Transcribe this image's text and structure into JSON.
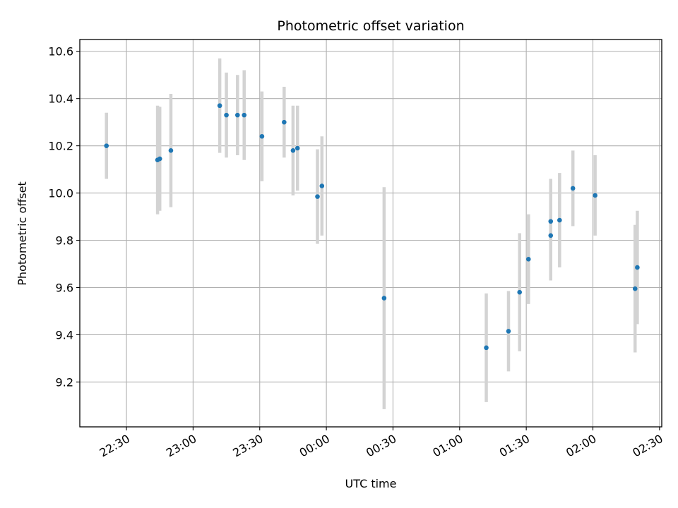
{
  "chart_data": {
    "type": "scatter",
    "title": "Photometric offset variation",
    "xlabel": "UTC time",
    "ylabel": "Photometric offset",
    "x_axis": "time",
    "x_ticks": [
      {
        "time": "22:30",
        "label": "22:30"
      },
      {
        "time": "23:00",
        "label": "23:00"
      },
      {
        "time": "23:30",
        "label": "23:30"
      },
      {
        "time": "00:00",
        "label": "00:00"
      },
      {
        "time": "00:30",
        "label": "00:30"
      },
      {
        "time": "01:00",
        "label": "01:00"
      },
      {
        "time": "01:30",
        "label": "01:30"
      },
      {
        "time": "02:00",
        "label": "02:00"
      },
      {
        "time": "02:30",
        "label": "02:30"
      }
    ],
    "xlim": [
      "22:09",
      "02:31"
    ],
    "y_ticks": [
      9.2,
      9.4,
      9.6,
      9.8,
      10.0,
      10.2,
      10.4,
      10.6
    ],
    "ylim": [
      9.01,
      10.65
    ],
    "grid": true,
    "point_color": "#1f77b4",
    "errorbar_color": "#d3d3d3",
    "points": [
      {
        "time": "22:21",
        "y": 10.2,
        "yerr": 0.14
      },
      {
        "time": "22:44",
        "y": 10.14,
        "yerr": 0.23
      },
      {
        "time": "22:45",
        "y": 10.145,
        "yerr": 0.22
      },
      {
        "time": "22:50",
        "y": 10.18,
        "yerr": 0.24
      },
      {
        "time": "23:12",
        "y": 10.37,
        "yerr": 0.2
      },
      {
        "time": "23:15",
        "y": 10.33,
        "yerr": 0.18
      },
      {
        "time": "23:20",
        "y": 10.33,
        "yerr": 0.17
      },
      {
        "time": "23:23",
        "y": 10.33,
        "yerr": 0.19
      },
      {
        "time": "23:31",
        "y": 10.24,
        "yerr": 0.19
      },
      {
        "time": "23:41",
        "y": 10.3,
        "yerr": 0.15
      },
      {
        "time": "23:45",
        "y": 10.18,
        "yerr": 0.19
      },
      {
        "time": "23:47",
        "y": 10.19,
        "yerr": 0.18
      },
      {
        "time": "23:56",
        "y": 9.985,
        "yerr": 0.2
      },
      {
        "time": "23:58",
        "y": 10.03,
        "yerr": 0.21
      },
      {
        "time": "00:26",
        "y": 9.555,
        "yerr": 0.47
      },
      {
        "time": "01:12",
        "y": 9.345,
        "yerr": 0.23
      },
      {
        "time": "01:22",
        "y": 9.415,
        "yerr": 0.17
      },
      {
        "time": "01:27",
        "y": 9.58,
        "yerr": 0.25
      },
      {
        "time": "01:31",
        "y": 9.72,
        "yerr": 0.19
      },
      {
        "time": "01:41",
        "y": 9.88,
        "yerr": 0.18
      },
      {
        "time": "01:41",
        "y": 9.82,
        "yerr": 0.19
      },
      {
        "time": "01:45",
        "y": 9.885,
        "yerr": 0.2
      },
      {
        "time": "01:51",
        "y": 10.02,
        "yerr": 0.16
      },
      {
        "time": "02:01",
        "y": 9.99,
        "yerr": 0.17
      },
      {
        "time": "02:19",
        "y": 9.595,
        "yerr": 0.27
      },
      {
        "time": "02:20",
        "y": 9.685,
        "yerr": 0.24
      }
    ]
  }
}
